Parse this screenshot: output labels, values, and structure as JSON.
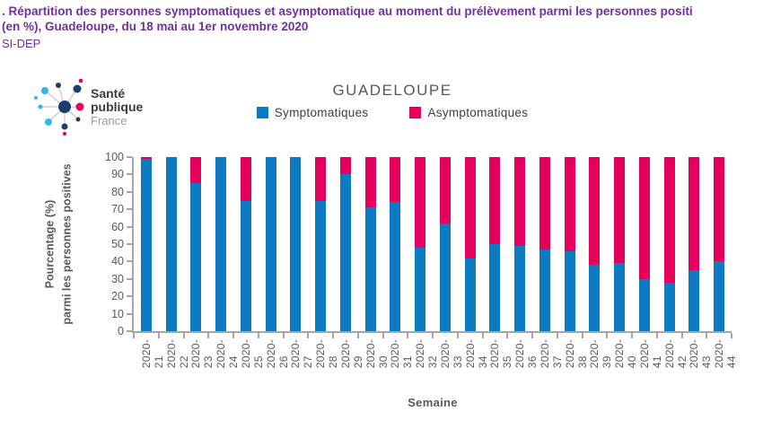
{
  "page": {
    "title_line1": ". Répartition des personnes symptomatiques et asymptomatique au moment du prélèvement parmi les personnes positi",
    "title_line2": "(en %), Guadeloupe, du 18 mai au 1er novembre 2020",
    "source": "SI-DEP",
    "title_color": "#7030a0"
  },
  "logo": {
    "name": "sante-publique-france-logo",
    "line1": "Santé",
    "line2": "publique",
    "line3": "France",
    "dot_colors": {
      "light_blue": "#35b7e5",
      "navy": "#1d3d6e",
      "pink": "#e4005f"
    }
  },
  "chart_data": {
    "type": "bar",
    "stacked": true,
    "title": "GUADELOUPE",
    "xlabel": "Semaine",
    "ylabel_line1": "Pourcentage (%)",
    "ylabel_line2": "parmi les personnes positives",
    "ylim": [
      0,
      100
    ],
    "yticks": [
      0,
      10,
      20,
      30,
      40,
      50,
      60,
      70,
      80,
      90,
      100
    ],
    "grid": false,
    "legend_position": "top",
    "categories": [
      "2020-21",
      "2020-22",
      "2020-23",
      "2020-24",
      "2020-25",
      "2020-26",
      "2020-27",
      "2020-28",
      "2020-29",
      "2020-30",
      "2020-31",
      "2020-32",
      "2020-33",
      "2020-34",
      "2020-35",
      "2020-36",
      "2020-37",
      "2020-38",
      "2020-39",
      "2020-40",
      "2020-41",
      "2020-42",
      "2020-43",
      "2020-44"
    ],
    "series": [
      {
        "name": "Symptomatiques",
        "color": "#0c7bc4",
        "values": [
          99,
          100,
          85,
          100,
          75,
          100,
          100,
          75,
          90,
          71,
          74,
          48,
          62,
          42,
          50,
          49,
          47,
          46,
          38,
          39,
          30,
          28,
          35,
          40
        ]
      },
      {
        "name": "Asymptomatiques",
        "color": "#e5005e",
        "values": [
          1,
          0,
          15,
          0,
          25,
          0,
          0,
          25,
          10,
          29,
          26,
          52,
          38,
          58,
          50,
          51,
          53,
          54,
          62,
          61,
          70,
          72,
          65,
          60
        ]
      }
    ]
  }
}
